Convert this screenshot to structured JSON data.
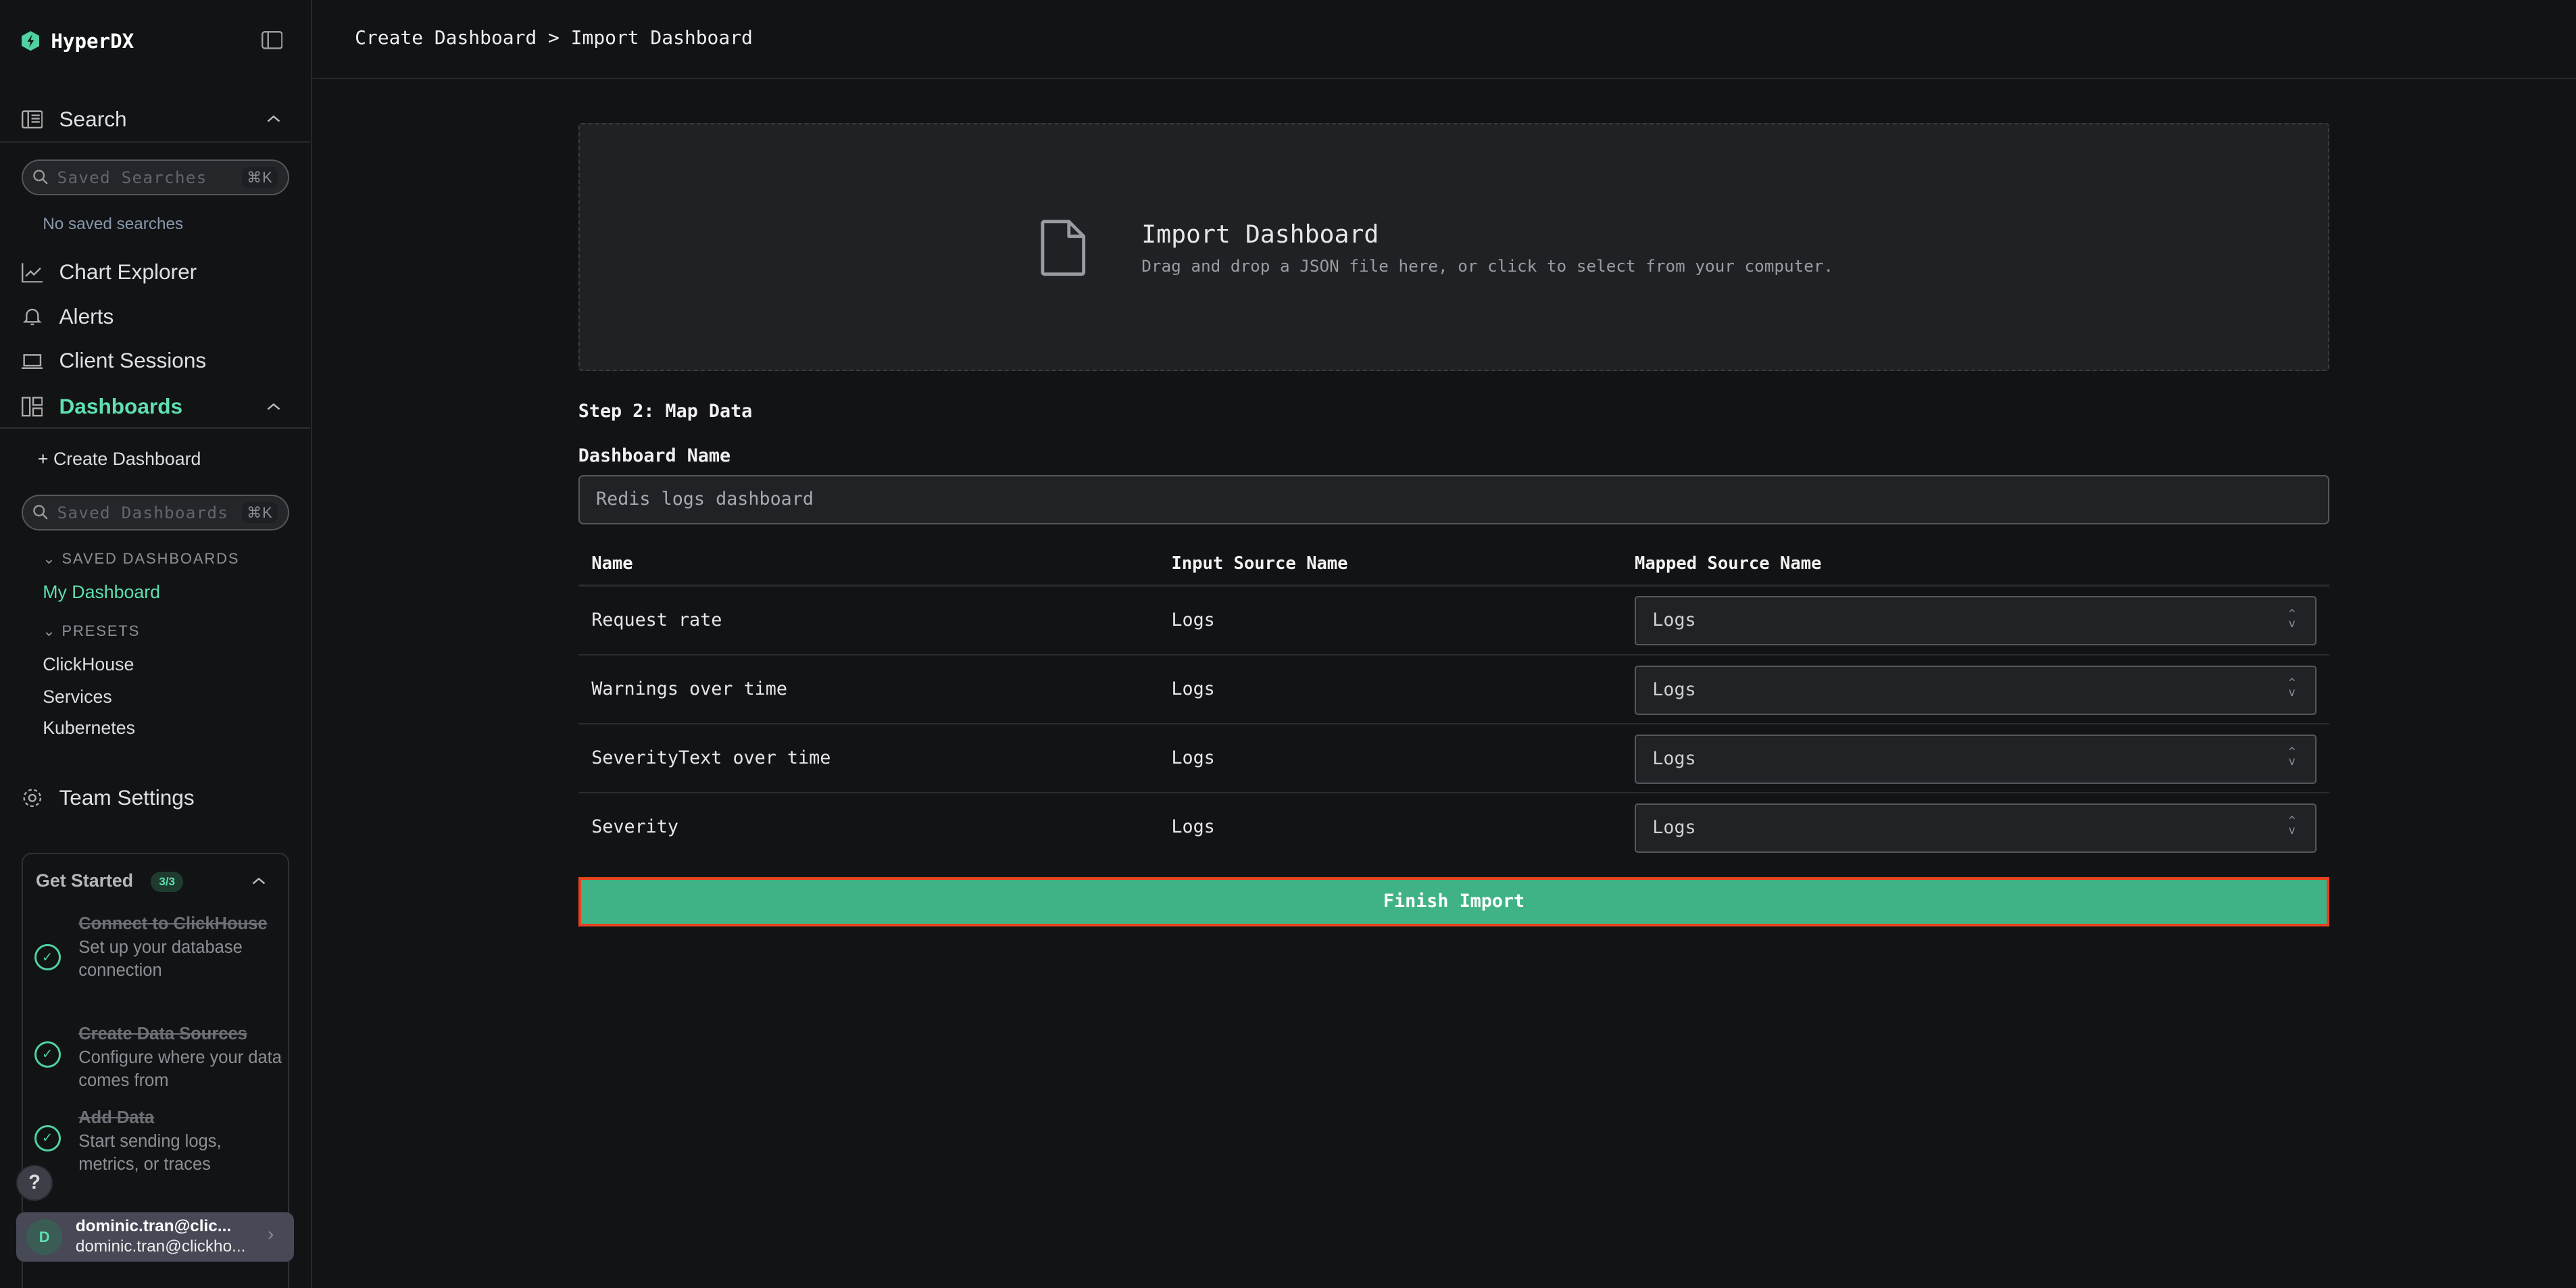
{
  "app": {
    "name": "HyperDX",
    "accent": "#4fd1a2"
  },
  "sidebar": {
    "search": {
      "label": "Search",
      "placeholder": "Saved Searches",
      "shortcut": "⌘K",
      "empty": "No saved searches"
    },
    "items": [
      {
        "label": "Chart Explorer",
        "icon": "chart-line-icon"
      },
      {
        "label": "Alerts",
        "icon": "bell-icon"
      },
      {
        "label": "Client Sessions",
        "icon": "laptop-icon"
      }
    ],
    "dashboards": {
      "label": "Dashboards",
      "create": "Create Dashboard",
      "placeholder": "Saved Dashboards",
      "shortcut": "⌘K",
      "saved_header": "SAVED DASHBOARDS",
      "saved": [
        "My Dashboard"
      ],
      "presets_header": "PRESETS",
      "presets": [
        "ClickHouse",
        "Services",
        "Kubernetes"
      ]
    },
    "team_settings": "Team Settings",
    "get_started": {
      "title": "Get Started",
      "badge": "3/3",
      "steps": [
        {
          "title": "Connect to ClickHouse",
          "desc": "Set up your database connection",
          "done": true
        },
        {
          "title": "Create Data Sources",
          "desc": "Configure where your data comes from",
          "done": true
        },
        {
          "title": "Add Data",
          "desc": "Start sending logs, metrics, or traces",
          "done": true
        }
      ]
    },
    "help": "?",
    "user": {
      "initial": "D",
      "name": "dominic.tran@clic...",
      "email": "dominic.tran@clickho..."
    }
  },
  "header": {
    "breadcrumb": "Create Dashboard > Import Dashboard"
  },
  "dropzone": {
    "title": "Import Dashboard",
    "subtitle": "Drag and drop a JSON file here, or click to select from your computer."
  },
  "form": {
    "step": "Step 2: Map Data",
    "name_label": "Dashboard Name",
    "name_value": "Redis logs dashboard"
  },
  "table": {
    "headers": [
      "Name",
      "Input Source Name",
      "Mapped Source Name"
    ],
    "rows": [
      {
        "name": "Request rate",
        "input": "Logs",
        "mapped": "Logs"
      },
      {
        "name": "Warnings over time",
        "input": "Logs",
        "mapped": "Logs"
      },
      {
        "name": "SeverityText over time",
        "input": "Logs",
        "mapped": "Logs"
      },
      {
        "name": "Severity",
        "input": "Logs",
        "mapped": "Logs"
      }
    ]
  },
  "finish_label": "Finish Import"
}
